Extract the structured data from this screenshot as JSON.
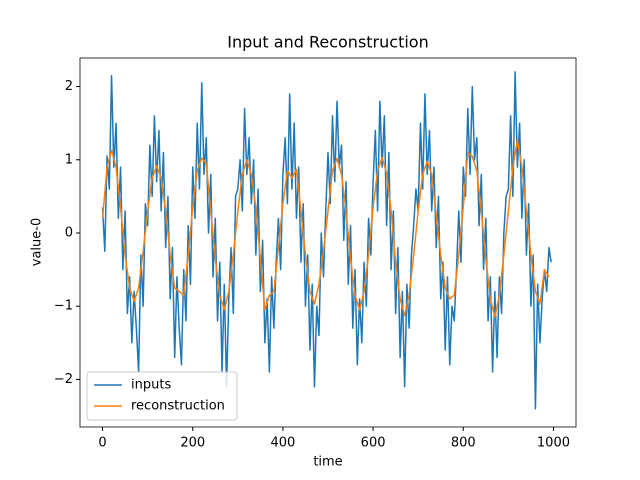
{
  "chart_data": {
    "type": "line",
    "title": "Input and Reconstruction",
    "xlabel": "time",
    "ylabel": "value-0",
    "xlim": [
      -50,
      1050
    ],
    "ylim": [
      -2.65,
      2.39
    ],
    "xticks": [
      0,
      200,
      400,
      600,
      800,
      1000
    ],
    "yticks": [
      {
        "value": -2,
        "label": "−2"
      },
      {
        "value": -1,
        "label": "−1"
      },
      0,
      1,
      2
    ],
    "legend": "lower left",
    "series": [
      {
        "name": "inputs",
        "color": "#1f77b4",
        "x": [
          0,
          5,
          10,
          15,
          20,
          25,
          30,
          35,
          40,
          45,
          50,
          55,
          60,
          65,
          70,
          75,
          80,
          85,
          90,
          95,
          100,
          105,
          110,
          115,
          120,
          125,
          130,
          135,
          140,
          145,
          150,
          155,
          160,
          165,
          170,
          175,
          180,
          185,
          190,
          195,
          200,
          205,
          210,
          215,
          220,
          225,
          230,
          235,
          240,
          245,
          250,
          255,
          260,
          265,
          270,
          275,
          280,
          285,
          290,
          295,
          300,
          305,
          310,
          315,
          320,
          325,
          330,
          335,
          340,
          345,
          350,
          355,
          360,
          365,
          370,
          375,
          380,
          385,
          390,
          395,
          400,
          405,
          410,
          415,
          420,
          425,
          430,
          435,
          440,
          445,
          450,
          455,
          460,
          465,
          470,
          475,
          480,
          485,
          490,
          495,
          500,
          505,
          510,
          515,
          520,
          525,
          530,
          535,
          540,
          545,
          550,
          555,
          560,
          565,
          570,
          575,
          580,
          585,
          590,
          595,
          600,
          605,
          610,
          615,
          620,
          625,
          630,
          635,
          640,
          645,
          650,
          655,
          660,
          665,
          670,
          675,
          680,
          685,
          690,
          695,
          700,
          705,
          710,
          715,
          720,
          725,
          730,
          735,
          740,
          745,
          750,
          755,
          760,
          765,
          770,
          775,
          780,
          785,
          790,
          795,
          800,
          805,
          810,
          815,
          820,
          825,
          830,
          835,
          840,
          845,
          850,
          855,
          860,
          865,
          870,
          875,
          880,
          885,
          890,
          895,
          900,
          905,
          910,
          915,
          920,
          925,
          930,
          935,
          940,
          945,
          950,
          955,
          960,
          965,
          970,
          975,
          980,
          985,
          990,
          995
        ],
        "values": [
          0.35,
          -0.25,
          1.05,
          0.6,
          2.15,
          0.9,
          1.5,
          0.2,
          0.9,
          -0.5,
          0.3,
          -1.1,
          -0.6,
          -1.5,
          -0.8,
          -1.3,
          -1.9,
          -0.3,
          -1.0,
          0.4,
          0.1,
          1.2,
          0.5,
          1.6,
          0.7,
          1.4,
          0.3,
          1.1,
          -0.2,
          0.5,
          -0.9,
          -0.2,
          -1.7,
          -0.6,
          -1.3,
          -1.8,
          -0.5,
          -1.2,
          0.1,
          -0.7,
          0.9,
          0.2,
          1.5,
          0.6,
          2.05,
          0.8,
          1.3,
          0.0,
          0.8,
          -0.6,
          0.2,
          -1.2,
          -0.4,
          -1.9,
          -0.7,
          -2.1,
          -0.9,
          -0.2,
          -1.1,
          0.5,
          0.6,
          1.0,
          0.3,
          1.7,
          0.8,
          1.3,
          0.4,
          1.0,
          -0.3,
          0.6,
          -0.8,
          -0.1,
          -1.5,
          -0.9,
          -1.9,
          -0.6,
          -1.3,
          -0.4,
          0.2,
          -0.5,
          0.8,
          1.3,
          0.4,
          1.9,
          0.6,
          1.5,
          0.2,
          0.9,
          -0.4,
          0.4,
          -1.0,
          -0.3,
          -1.6,
          -0.7,
          -2.1,
          -1.0,
          -1.4,
          0.0,
          -0.6,
          0.3,
          1.1,
          0.4,
          1.6,
          0.7,
          1.8,
          0.9,
          1.2,
          -0.1,
          0.7,
          -0.7,
          0.1,
          -1.3,
          -0.5,
          -1.8,
          -0.9,
          -1.5,
          -0.4,
          -1.0,
          0.2,
          -0.3,
          0.7,
          1.4,
          0.3,
          1.8,
          0.9,
          1.6,
          0.1,
          1.1,
          -0.5,
          0.3,
          -1.1,
          -0.2,
          -1.7,
          -0.8,
          -2.1,
          -0.7,
          -1.3,
          -0.3,
          0.1,
          0.6,
          0.3,
          1.5,
          0.6,
          1.9,
          0.8,
          1.4,
          0.3,
          0.9,
          -0.2,
          0.5,
          -0.9,
          -0.4,
          -1.6,
          -0.6,
          -1.8,
          -1.0,
          -1.2,
          -0.5,
          0.3,
          -0.4,
          0.9,
          0.5,
          1.7,
          0.8,
          2.0,
          1.0,
          1.3,
          0.1,
          0.8,
          -0.5,
          0.2,
          -1.2,
          -0.6,
          -1.9,
          -0.8,
          -1.7,
          -0.6,
          -1.1,
          0.0,
          0.5,
          0.6,
          1.6,
          0.5,
          2.2,
          0.9,
          1.5,
          0.2,
          1.0,
          -0.3,
          0.4,
          -1.0,
          -0.3,
          -2.4,
          -0.7,
          -1.5,
          -0.9,
          -0.5,
          -0.8,
          -0.2,
          -0.4
        ]
      },
      {
        "name": "reconstruction",
        "color": "#ff7f0e",
        "x": [
          0,
          10,
          20,
          30,
          40,
          50,
          60,
          70,
          80,
          90,
          100,
          110,
          120,
          130,
          140,
          150,
          160,
          170,
          180,
          190,
          200,
          210,
          220,
          230,
          240,
          250,
          260,
          270,
          280,
          290,
          300,
          310,
          320,
          330,
          340,
          350,
          360,
          370,
          380,
          390,
          400,
          410,
          420,
          430,
          440,
          450,
          460,
          470,
          480,
          490,
          500,
          510,
          520,
          530,
          540,
          550,
          560,
          570,
          580,
          590,
          600,
          610,
          620,
          630,
          640,
          650,
          660,
          670,
          680,
          690,
          700,
          710,
          720,
          730,
          740,
          750,
          760,
          770,
          780,
          790,
          800,
          810,
          820,
          830,
          840,
          850,
          860,
          870,
          880,
          890,
          900,
          910,
          920,
          930,
          940,
          950,
          960,
          970,
          980,
          990
        ],
        "values": [
          0.2,
          0.9,
          1.13,
          0.9,
          0.35,
          -0.3,
          -0.75,
          -0.93,
          -0.75,
          -0.25,
          0.3,
          0.75,
          0.92,
          0.75,
          0.3,
          -0.3,
          -0.75,
          -0.8,
          -0.85,
          -0.3,
          0.35,
          0.85,
          1.02,
          0.95,
          0.3,
          -0.35,
          -0.85,
          -1.05,
          -0.8,
          -0.3,
          0.3,
          0.8,
          1.0,
          0.8,
          0.35,
          -0.35,
          -1.05,
          -0.85,
          -0.8,
          -0.2,
          0.4,
          0.85,
          0.75,
          0.87,
          0.3,
          -0.3,
          -0.8,
          -0.97,
          -0.7,
          -0.25,
          0.3,
          0.85,
          1.02,
          0.8,
          0.3,
          -0.35,
          -0.85,
          -1.05,
          -0.8,
          -0.3,
          0.35,
          0.85,
          1.03,
          0.82,
          0.3,
          -0.4,
          -0.9,
          -1.13,
          -0.85,
          -0.3,
          0.3,
          0.8,
          0.98,
          0.8,
          0.25,
          -0.3,
          -0.75,
          -0.9,
          -0.85,
          -0.3,
          0.35,
          1.1,
          1.05,
          0.85,
          0.3,
          -0.35,
          -0.9,
          -1.15,
          -0.85,
          -0.3,
          0.3,
          0.9,
          1.27,
          0.9,
          0.3,
          -0.3,
          -0.8,
          -0.97,
          -0.5,
          -0.6
        ]
      }
    ]
  }
}
